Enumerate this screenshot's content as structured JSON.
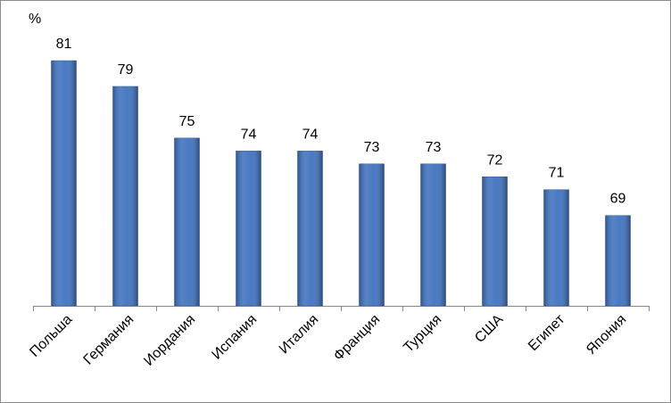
{
  "chart_data": {
    "type": "bar",
    "y_axis_label": "%",
    "categories": [
      "Польша",
      "Германия",
      "Иордания",
      "Испания",
      "Италия",
      "Франция",
      "Турция",
      "США",
      "Египет",
      "Япония"
    ],
    "values": [
      81,
      79,
      75,
      74,
      74,
      73,
      73,
      72,
      71,
      69
    ],
    "color": "#3f72be",
    "ylim": [
      62,
      81
    ]
  }
}
